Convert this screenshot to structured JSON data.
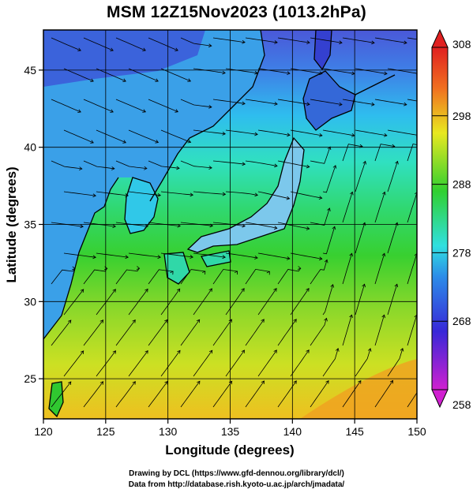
{
  "title": "MSM 12Z15Nov2023 (1013.2hPa)",
  "xlabel": "Longitude (degrees)",
  "ylabel": "Latitude  (degrees)",
  "credits": {
    "line1": "Drawing by DCL (https://www.gfd-dennou.org/library/dcl/)",
    "line2": "Data from http://database.rish.kyoto-u.ac.jp/arch/jmadata/"
  },
  "chart_data": {
    "type": "heatmap",
    "x_axis": {
      "ticks": [
        120,
        125,
        130,
        135,
        140,
        145,
        150
      ],
      "range": [
        120,
        150
      ]
    },
    "y_axis": {
      "ticks": [
        25,
        30,
        35,
        40,
        45
      ],
      "range": [
        22.4,
        47.6
      ]
    },
    "colorbar": {
      "ticks": [
        258,
        268,
        278,
        288,
        298,
        308
      ],
      "range": [
        258,
        308
      ],
      "colors": [
        "#d020d0",
        "#2040e0",
        "#30e0e0",
        "#30d030",
        "#e8e820",
        "#f06020",
        "#e02020"
      ]
    },
    "grid": true,
    "overlay": "streamlines"
  }
}
